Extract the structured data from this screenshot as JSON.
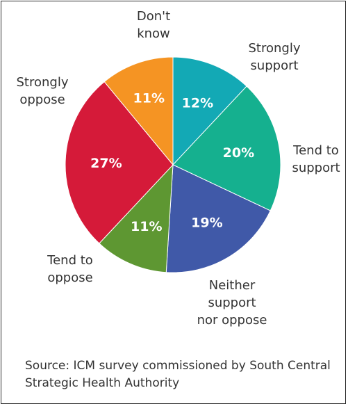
{
  "chart_data": {
    "type": "pie",
    "start_angle_deg": 0,
    "direction": "clockwise",
    "slices": [
      {
        "label": "Strongly support",
        "value": 12,
        "display": "12%",
        "color": "#13A9B5"
      },
      {
        "label": "Tend to support",
        "value": 20,
        "display": "20%",
        "color": "#15B08F"
      },
      {
        "label": "Neither support nor oppose",
        "value": 19,
        "display": "19%",
        "color": "#4059A8"
      },
      {
        "label": "Tend to oppose",
        "value": 11,
        "display": "11%",
        "color": "#5E9732"
      },
      {
        "label": "Strongly oppose",
        "value": 27,
        "display": "27%",
        "color": "#D51A39"
      },
      {
        "label": "Don't know",
        "value": 11,
        "display": "11%",
        "color": "#F59423"
      }
    ]
  },
  "source_text": "Source: ICM survey commissioned by South Central Strategic Health Authority"
}
